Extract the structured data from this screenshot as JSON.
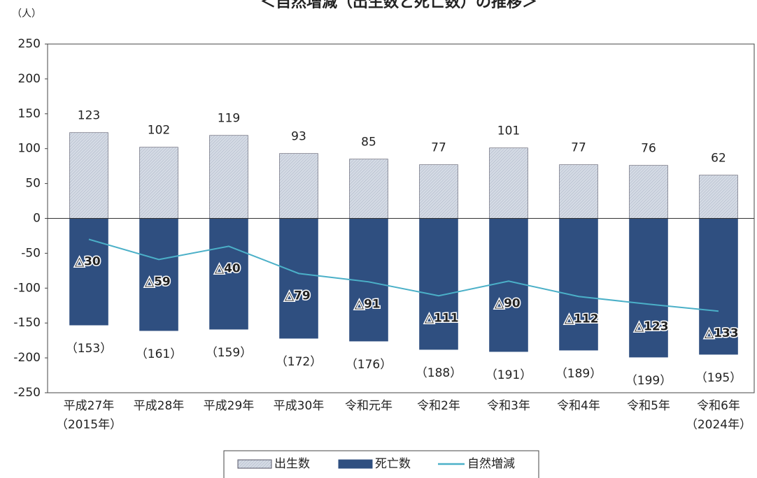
{
  "chart_data": {
    "type": "bar",
    "title": "＜自然増減（出生数と死亡数）の推移＞",
    "y_unit": "（人）",
    "categories": [
      [
        "平成27年",
        "（2015年）"
      ],
      [
        "平成28年"
      ],
      [
        "平成29年"
      ],
      [
        "平成30年"
      ],
      [
        "令和元年"
      ],
      [
        "令和2年"
      ],
      [
        "令和3年"
      ],
      [
        "令和4年"
      ],
      [
        "令和5年"
      ],
      [
        "令和6年",
        "（2024年）"
      ]
    ],
    "series": [
      {
        "name": "出生数",
        "type": "bar",
        "color": "#c9d0dc",
        "values": [
          123,
          102,
          119,
          93,
          85,
          77,
          101,
          77,
          76,
          62
        ]
      },
      {
        "name": "死亡数",
        "type": "bar",
        "color": "#2f4f80",
        "values": [
          -153,
          -161,
          -159,
          -172,
          -176,
          -188,
          -191,
          -189,
          -199,
          -195
        ],
        "value_labels": [
          "（153）",
          "（161）",
          "（159）",
          "（172）",
          "（176）",
          "（188）",
          "（191）",
          "（189）",
          "（199）",
          "（195）"
        ]
      },
      {
        "name": "自然増減",
        "type": "line",
        "color": "#4bb0c8",
        "values": [
          -30,
          -59,
          -40,
          -79,
          -91,
          -111,
          -90,
          -112,
          -123,
          -133
        ],
        "value_labels": [
          "△30",
          "△59",
          "△40",
          "△79",
          "△91",
          "△111",
          "△90",
          "△112",
          "△123",
          "△133"
        ]
      }
    ],
    "ylim": [
      -250,
      250
    ],
    "yticks": [
      -250,
      -200,
      -150,
      -100,
      -50,
      0,
      50,
      100,
      150,
      200,
      250
    ],
    "legend": "bottom"
  }
}
